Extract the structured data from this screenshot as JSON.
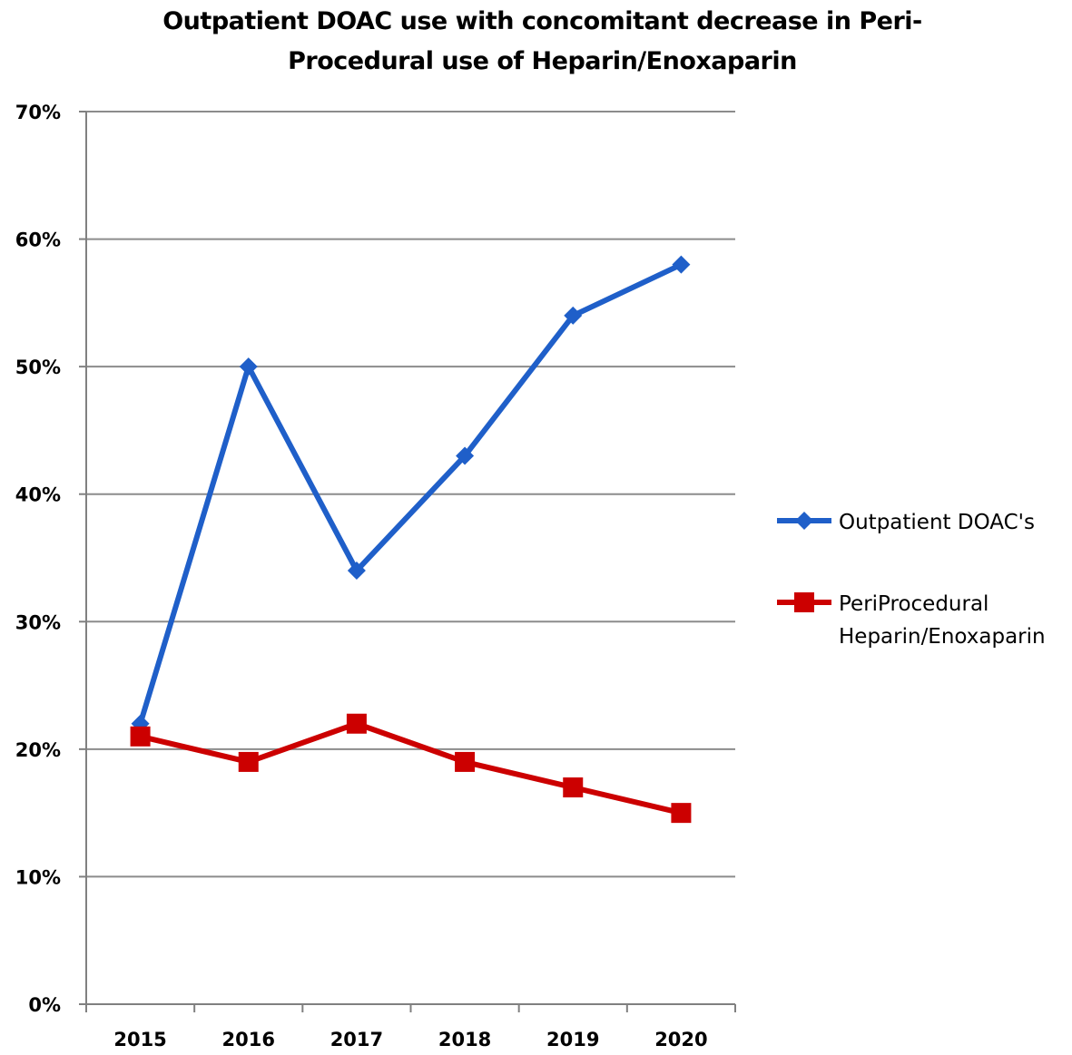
{
  "chart_data": {
    "type": "line",
    "title_lines": [
      "Outpatient DOAC use with concomitant decrease in Peri-",
      "Procedural  use of Heparin/Enoxaparin"
    ],
    "categories": [
      "2015",
      "2016",
      "2017",
      "2018",
      "2019",
      "2020"
    ],
    "yticks": [
      "0%",
      "10%",
      "20%",
      "30%",
      "40%",
      "50%",
      "60%",
      "70%"
    ],
    "ylim": [
      0,
      70
    ],
    "grid": true,
    "legend_position": "right",
    "series": [
      {
        "name": "Outpatient DOAC's",
        "name_lines": [
          "Outpatient DOAC's"
        ],
        "color": "#1f5fc9",
        "marker": "diamond",
        "values": [
          22,
          50,
          34,
          43,
          54,
          58
        ]
      },
      {
        "name": "PeriProcedural Heparin/Enoxaparin",
        "name_lines": [
          "PeriProcedural",
          "Heparin/Enoxaparin"
        ],
        "color": "#cc0000",
        "marker": "square",
        "values": [
          21,
          19,
          22,
          19,
          17,
          15
        ]
      }
    ]
  }
}
